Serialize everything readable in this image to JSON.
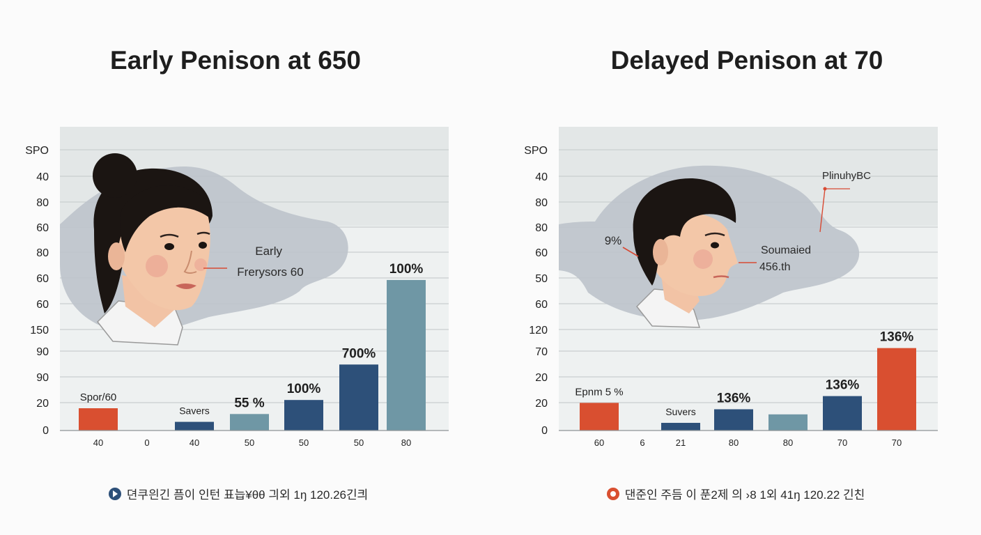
{
  "colors": {
    "red": "#d94f30",
    "navy": "#2d5079",
    "teal": "#6f97a5",
    "plot_bg": "#eef1f1",
    "plot_band": "#e3e7e7",
    "blob": "#bcc3cb",
    "grid": "#c9ced0",
    "annotation": "#d84a33"
  },
  "chart_data": [
    {
      "type": "bar",
      "title": "Early Penison at 650",
      "y_tick_labels": [
        "SPO",
        "40",
        "80",
        "60",
        "80",
        "60",
        "60",
        "150",
        "90",
        "90",
        "20",
        "0"
      ],
      "categories": [
        "40",
        "0",
        "40",
        "50",
        "50",
        "50",
        "80"
      ],
      "values": [
        0.54,
        0,
        0.21,
        0.4,
        0.74,
        1.6,
        3.65
      ],
      "bar_colors": [
        "red",
        "none",
        "navy",
        "teal",
        "navy",
        "navy",
        "teal"
      ],
      "data_labels": [
        "Spor/60",
        "",
        "Savers",
        "55 %",
        "100%",
        "700%",
        "100%"
      ],
      "annotation": {
        "lines": [
          "Early",
          "Frerysors 60"
        ]
      },
      "legend": {
        "icon": "play-circle-icon",
        "icon_color": "navy",
        "text": "뎐쿠읜긴 픔이 인턴 표늡¥θθ 긔외 1ŋ 120.26긴킈"
      }
    },
    {
      "type": "bar",
      "title": "Delayed Penison at 70",
      "y_tick_labels": [
        "SPO",
        "40",
        "80",
        "80",
        "60",
        "50",
        "60",
        "120",
        "70",
        "20",
        "20",
        "0"
      ],
      "categories": [
        "60",
        "6",
        "21",
        "80",
        "80",
        "70",
        "70"
      ],
      "values": [
        0.65,
        0,
        0.18,
        0.5,
        0.38,
        0.81,
        1.94
      ],
      "bar_colors": [
        "red",
        "none",
        "navy",
        "navy",
        "teal",
        "navy",
        "red"
      ],
      "data_labels": [
        "Epnm 5 %",
        "",
        "Suvers",
        "136%",
        "",
        "136%",
        "136%"
      ],
      "annotation_percent": "9%",
      "annotation": {
        "lines": [
          "Soumaied",
          "456.th"
        ]
      },
      "callout": "PlinuhyBC",
      "legend": {
        "icon": "record-circle-icon",
        "icon_color": "red",
        "text": "댄준인 주듬 이 푼2제 의 ›8 1외 41ŋ 120.22 긴친"
      }
    }
  ]
}
